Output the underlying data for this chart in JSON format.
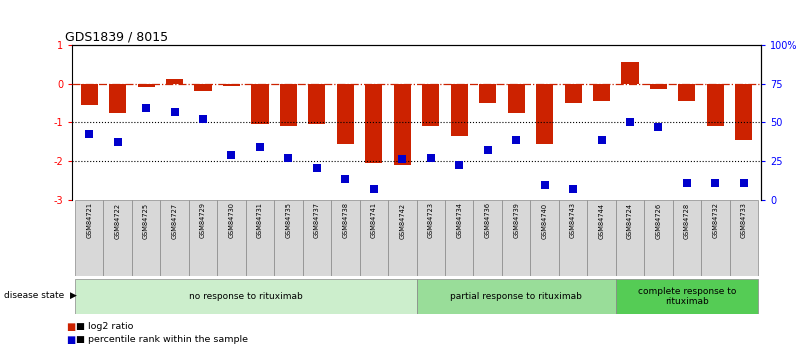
{
  "title": "GDS1839 / 8015",
  "samples": [
    "GSM84721",
    "GSM84722",
    "GSM84725",
    "GSM84727",
    "GSM84729",
    "GSM84730",
    "GSM84731",
    "GSM84735",
    "GSM84737",
    "GSM84738",
    "GSM84741",
    "GSM84742",
    "GSM84723",
    "GSM84734",
    "GSM84736",
    "GSM84739",
    "GSM84740",
    "GSM84743",
    "GSM84744",
    "GSM84724",
    "GSM84726",
    "GSM84728",
    "GSM84732",
    "GSM84733"
  ],
  "log2_ratio": [
    -0.55,
    -0.75,
    -0.08,
    0.12,
    -0.18,
    -0.05,
    -1.05,
    -1.08,
    -1.05,
    -1.55,
    -2.05,
    -2.1,
    -1.1,
    -1.35,
    -0.5,
    -0.75,
    -1.55,
    -0.5,
    -0.45,
    0.55,
    -0.15,
    -0.45,
    -1.1,
    -1.45
  ],
  "percentile_rank": [
    -1.3,
    -1.5,
    -0.62,
    -0.72,
    -0.92,
    -1.85,
    -1.62,
    -1.92,
    -2.18,
    -2.45,
    -2.72,
    -1.95,
    -1.92,
    -2.1,
    -1.72,
    -1.45,
    -2.6,
    -2.72,
    -1.45,
    -0.98,
    -1.12,
    -2.55,
    -2.55,
    -2.55
  ],
  "group_boundaries": [
    0,
    12,
    19,
    24
  ],
  "group_labels": [
    "no response to rituximab",
    "partial response to rituximab",
    "complete response to\nrituximab"
  ],
  "group_colors": [
    "#cceecc",
    "#99dd99",
    "#55cc55"
  ],
  "bar_color": "#cc2200",
  "dot_color": "#0000cc",
  "ylim_left": [
    -3.0,
    1.0
  ],
  "ylim_right": [
    0,
    100
  ],
  "right_ticks": [
    0,
    25,
    50,
    75,
    100
  ],
  "right_tick_labels": [
    "0",
    "25",
    "50",
    "75",
    "100%"
  ],
  "left_ticks": [
    -3,
    -2,
    -1,
    0,
    1
  ]
}
